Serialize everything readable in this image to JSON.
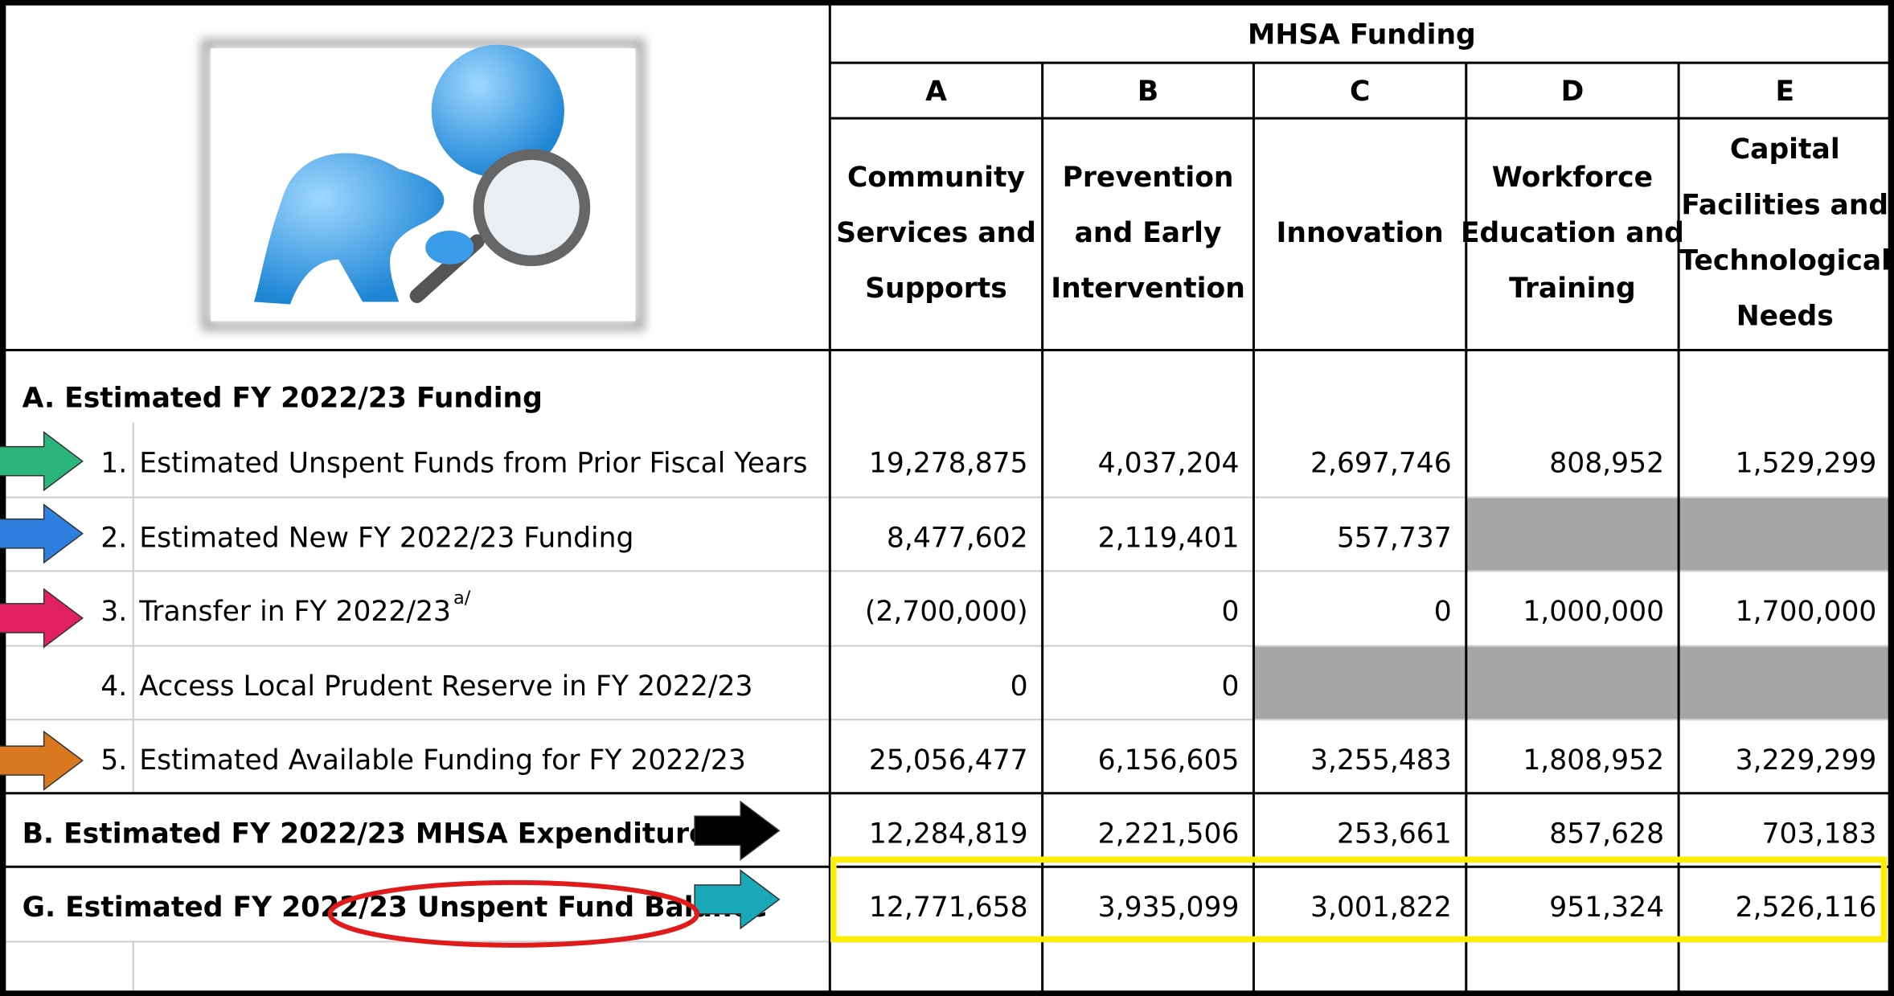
{
  "header": {
    "group_title": "MHSA Funding",
    "columns": [
      {
        "letter": "A",
        "name": [
          "Community",
          "Services and",
          "Supports"
        ]
      },
      {
        "letter": "B",
        "name": [
          "Prevention",
          "and Early",
          "Intervention"
        ]
      },
      {
        "letter": "C",
        "name": [
          "Innovation"
        ]
      },
      {
        "letter": "D",
        "name": [
          "Workforce",
          "Education and",
          "Training"
        ]
      },
      {
        "letter": "E",
        "name": [
          "Capital",
          "Facilities and",
          "Technological",
          "Needs"
        ]
      }
    ]
  },
  "section_a_title": "A. Estimated FY 2022/23 Funding",
  "items": [
    {
      "number": "1.",
      "label": "Estimated Unspent Funds from Prior Fiscal Years",
      "values": [
        "19,278,875",
        "4,037,204",
        "2,697,746",
        "808,952",
        "1,529,299"
      ]
    },
    {
      "number": "2.",
      "label": "Estimated New FY 2022/23 Funding",
      "values": [
        "8,477,602",
        "2,119,401",
        "557,737",
        null,
        null
      ]
    },
    {
      "number": "3.",
      "label": "Transfer in FY 2022/23",
      "note": "a/",
      "values": [
        "(2,700,000)",
        "0",
        "0",
        "1,000,000",
        "1,700,000"
      ]
    },
    {
      "number": "4.",
      "label": "Access Local Prudent Reserve in FY 2022/23",
      "values": [
        "0",
        "0",
        null,
        null,
        null
      ]
    },
    {
      "number": "5.",
      "label": "Estimated Available Funding for FY 2022/23",
      "values": [
        "25,056,477",
        "6,156,605",
        "3,255,483",
        "1,808,952",
        "3,229,299"
      ]
    }
  ],
  "summary_rows": [
    {
      "label": "B. Estimated FY 2022/23 MHSA Expenditures",
      "values": [
        "12,284,819",
        "2,221,506",
        "253,661",
        "857,628",
        "703,183"
      ]
    },
    {
      "label": "G. Estimated FY 2022/23 Unspent Fund Balance",
      "values": [
        "12,771,658",
        "3,935,099",
        "3,001,822",
        "951,324",
        "2,526,116"
      ]
    }
  ]
}
